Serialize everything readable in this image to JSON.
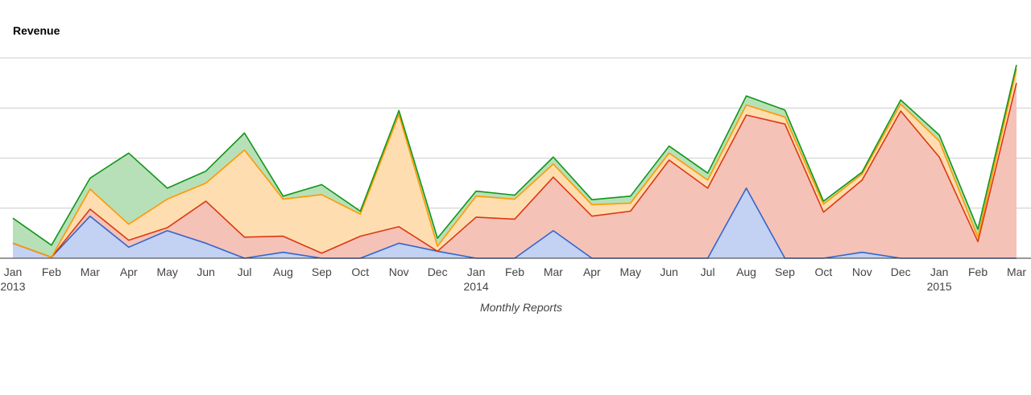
{
  "chart_data": {
    "type": "area",
    "stacked": true,
    "title": "Revenue",
    "xlabel": "Monthly Reports",
    "ylabel": "",
    "ylim": [
      0,
      4
    ],
    "grid": true,
    "legend": "none",
    "categories": [
      "Jan 2013",
      "Feb",
      "Mar",
      "Apr",
      "May",
      "Jun",
      "Jul",
      "Aug",
      "Sep",
      "Oct",
      "Nov",
      "Dec",
      "Jan 2014",
      "Feb",
      "Mar",
      "Apr",
      "May",
      "Jun",
      "Jul",
      "Aug",
      "Sep",
      "Oct",
      "Nov",
      "Dec",
      "Jan 2015",
      "Feb",
      "Mar"
    ],
    "tick_labels": [
      [
        "Jan",
        "2013"
      ],
      [
        "Feb"
      ],
      [
        "Mar"
      ],
      [
        "Apr"
      ],
      [
        "May"
      ],
      [
        "Jun"
      ],
      [
        "Jul"
      ],
      [
        "Aug"
      ],
      [
        "Sep"
      ],
      [
        "Oct"
      ],
      [
        "Nov"
      ],
      [
        "Dec"
      ],
      [
        "Jan",
        "2014"
      ],
      [
        "Feb"
      ],
      [
        "Mar"
      ],
      [
        "Apr"
      ],
      [
        "May"
      ],
      [
        "Jun"
      ],
      [
        "Jul"
      ],
      [
        "Aug"
      ],
      [
        "Sep"
      ],
      [
        "Oct"
      ],
      [
        "Nov"
      ],
      [
        "Dec"
      ],
      [
        "Jan",
        "2015"
      ],
      [
        "Feb"
      ],
      [
        "Mar"
      ]
    ],
    "series": [
      {
        "line_color": "#3366cc",
        "fill_color": "#c3d1f2",
        "values": [
          0.3,
          0.02,
          0.84,
          0.22,
          0.55,
          0.3,
          0.0,
          0.12,
          0.0,
          0.0,
          0.3,
          0.14,
          0.0,
          0.0,
          0.55,
          0.0,
          0.0,
          0.0,
          0.0,
          1.4,
          0.0,
          0.0,
          0.12,
          0.0,
          0.0,
          0.0,
          0.0
        ]
      },
      {
        "line_color": "#dc3912",
        "fill_color": "#f5c2b8",
        "values": [
          0.0,
          0.0,
          0.14,
          0.14,
          0.06,
          0.84,
          0.42,
          0.32,
          0.1,
          0.44,
          0.33,
          0.0,
          0.82,
          0.78,
          1.07,
          0.84,
          0.94,
          1.96,
          1.4,
          1.46,
          2.68,
          0.92,
          1.44,
          2.94,
          2.02,
          0.33,
          3.5
        ]
      },
      {
        "line_color": "#ff9900",
        "fill_color": "#fedeb0",
        "values": [
          0.0,
          0.0,
          0.4,
          0.32,
          0.57,
          0.36,
          1.74,
          0.74,
          1.17,
          0.44,
          2.24,
          0.1,
          0.42,
          0.4,
          0.26,
          0.23,
          0.16,
          0.14,
          0.16,
          0.2,
          0.14,
          0.16,
          0.12,
          0.14,
          0.32,
          0.09,
          0.28
        ]
      },
      {
        "line_color": "#109618",
        "fill_color": "#b8e0b8",
        "values": [
          0.5,
          0.24,
          0.22,
          1.42,
          0.22,
          0.24,
          0.34,
          0.06,
          0.2,
          0.06,
          0.08,
          0.16,
          0.1,
          0.08,
          0.14,
          0.1,
          0.14,
          0.14,
          0.14,
          0.18,
          0.14,
          0.06,
          0.04,
          0.08,
          0.12,
          0.16,
          0.08
        ]
      }
    ]
  }
}
